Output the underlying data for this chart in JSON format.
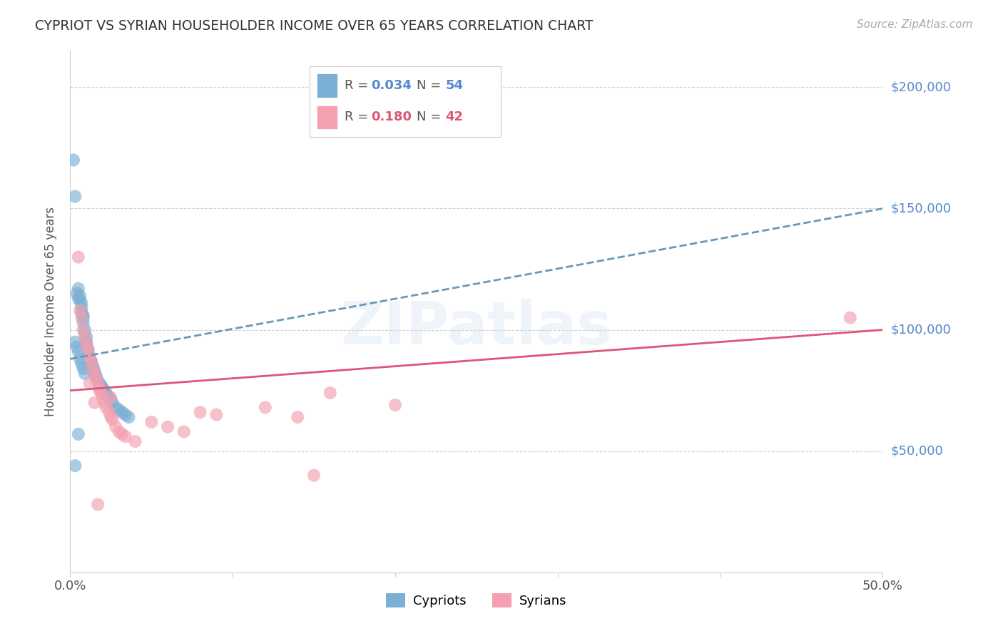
{
  "title": "CYPRIOT VS SYRIAN HOUSEHOLDER INCOME OVER 65 YEARS CORRELATION CHART",
  "source": "Source: ZipAtlas.com",
  "ylabel": "Householder Income Over 65 years",
  "xlim": [
    0,
    0.5
  ],
  "ylim": [
    0,
    215000
  ],
  "ytick_values": [
    50000,
    100000,
    150000,
    200000
  ],
  "ytick_labels": [
    "$50,000",
    "$100,000",
    "$150,000",
    "$200,000"
  ],
  "legend_r_cypriot": "0.034",
  "legend_n_cypriot": "54",
  "legend_r_syrian": "0.180",
  "legend_n_syrian": "42",
  "color_cypriot": "#7bafd4",
  "color_syrian": "#f4a0b0",
  "color_trend_cypriot": "#6699bb",
  "color_trend_syrian": "#dd5577",
  "color_ytick_label": "#5588cc",
  "background_color": "#ffffff",
  "cypriot_x": [
    0.002,
    0.003,
    0.004,
    0.005,
    0.005,
    0.006,
    0.006,
    0.007,
    0.007,
    0.007,
    0.008,
    0.008,
    0.008,
    0.009,
    0.009,
    0.01,
    0.01,
    0.01,
    0.011,
    0.011,
    0.012,
    0.012,
    0.013,
    0.013,
    0.014,
    0.014,
    0.015,
    0.015,
    0.016,
    0.016,
    0.017,
    0.018,
    0.019,
    0.02,
    0.021,
    0.022,
    0.023,
    0.024,
    0.025,
    0.026,
    0.028,
    0.03,
    0.032,
    0.034,
    0.036,
    0.003,
    0.004,
    0.005,
    0.006,
    0.007,
    0.008,
    0.009,
    0.003,
    0.005
  ],
  "cypriot_y": [
    170000,
    155000,
    115000,
    113000,
    117000,
    112000,
    114000,
    109000,
    111000,
    107000,
    106000,
    103000,
    105000,
    100000,
    98000,
    97000,
    95000,
    94000,
    92000,
    91000,
    89000,
    88000,
    87000,
    86000,
    85000,
    84000,
    83000,
    82000,
    81000,
    80000,
    79000,
    78000,
    77000,
    76000,
    75000,
    74000,
    73000,
    72000,
    71000,
    70000,
    68000,
    67000,
    66000,
    65000,
    64000,
    95000,
    93000,
    91000,
    88000,
    86000,
    84000,
    82000,
    44000,
    57000
  ],
  "syrian_x": [
    0.005,
    0.006,
    0.007,
    0.008,
    0.009,
    0.01,
    0.011,
    0.012,
    0.013,
    0.014,
    0.015,
    0.016,
    0.017,
    0.018,
    0.019,
    0.02,
    0.021,
    0.022,
    0.024,
    0.025,
    0.026,
    0.028,
    0.03,
    0.032,
    0.034,
    0.04,
    0.05,
    0.06,
    0.07,
    0.08,
    0.09,
    0.12,
    0.14,
    0.16,
    0.2,
    0.48,
    0.012,
    0.015,
    0.018,
    0.025,
    0.15,
    0.017
  ],
  "syrian_y": [
    130000,
    108000,
    105000,
    100000,
    97000,
    94000,
    92000,
    89000,
    87000,
    84000,
    82000,
    80000,
    78000,
    76000,
    74000,
    72000,
    70000,
    68000,
    66000,
    64000,
    63000,
    60000,
    58000,
    57000,
    56000,
    54000,
    62000,
    60000,
    58000,
    66000,
    65000,
    68000,
    64000,
    74000,
    69000,
    105000,
    78000,
    70000,
    75000,
    72000,
    40000,
    28000
  ],
  "trend_cypriot_x0": 0.0,
  "trend_cypriot_y0": 88000,
  "trend_cypriot_x1": 0.5,
  "trend_cypriot_y1": 150000,
  "trend_syrian_x0": 0.0,
  "trend_syrian_y0": 75000,
  "trend_syrian_x1": 0.5,
  "trend_syrian_y1": 100000
}
